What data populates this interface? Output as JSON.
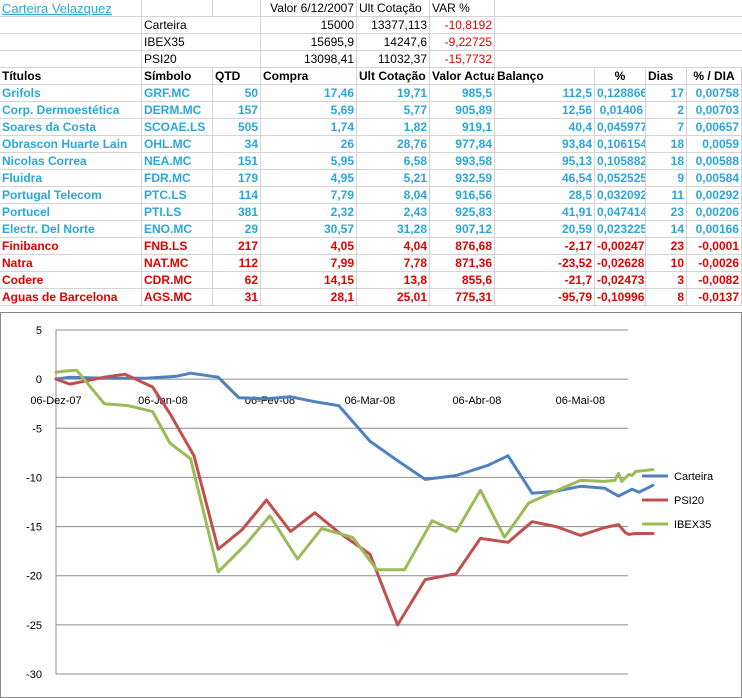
{
  "sheet": {
    "title": "Carteira Velazquez",
    "summary_headers": [
      "Valor 6/12/2007",
      "Ult Cotação",
      "VAR %"
    ],
    "summary": [
      {
        "name": "Carteira",
        "valor": "15000",
        "ult": "13377,113",
        "var": "-10,8192"
      },
      {
        "name": "IBEX35",
        "valor": "15695,9",
        "ult": "14247,6",
        "var": "-9,22725"
      },
      {
        "name": "PSI20",
        "valor": "13098,41",
        "ult": "11032,37",
        "var": "-15,7732"
      }
    ],
    "headers": [
      "Títulos",
      "Símbolo",
      "QTD",
      "Compra",
      "Ult Cotação",
      "Valor Actual",
      "Balanço",
      "%",
      "Dias",
      "% / DIA"
    ],
    "rows": [
      {
        "titulo": "Grifols",
        "simbolo": "GRF.MC",
        "qtd": "50",
        "compra": "17,46",
        "ult": "19,71",
        "valor": "985,5",
        "balanco": "112,5",
        "pct": "0,128866",
        "dias": "17",
        "pctdia": "0,00758",
        "color": "#2aa7d8"
      },
      {
        "titulo": "Corp. Dermoestética",
        "simbolo": "DERM.MC",
        "qtd": "157",
        "compra": "5,69",
        "ult": "5,77",
        "valor": "905,89",
        "balanco": "12,56",
        "pct": "0,01406",
        "dias": "2",
        "pctdia": "0,00703",
        "color": "#2aa7d8"
      },
      {
        "titulo": "Soares da Costa",
        "simbolo": "SCOAE.LS",
        "qtd": "505",
        "compra": "1,74",
        "ult": "1,82",
        "valor": "919,1",
        "balanco": "40,4",
        "pct": "0,045977",
        "dias": "7",
        "pctdia": "0,00657",
        "color": "#2aa7d8"
      },
      {
        "titulo": "Obrascon Huarte Lain",
        "simbolo": "OHL.MC",
        "qtd": "34",
        "compra": "26",
        "ult": "28,76",
        "valor": "977,84",
        "balanco": "93,84",
        "pct": "0,106154",
        "dias": "18",
        "pctdia": "0,0059",
        "color": "#2aa7d8"
      },
      {
        "titulo": "Nicolas Correa",
        "simbolo": "NEA.MC",
        "qtd": "151",
        "compra": "5,95",
        "ult": "6,58",
        "valor": "993,58",
        "balanco": "95,13",
        "pct": "0,105882",
        "dias": "18",
        "pctdia": "0,00588",
        "color": "#2aa7d8"
      },
      {
        "titulo": "Fluidra",
        "simbolo": "FDR.MC",
        "qtd": "179",
        "compra": "4,95",
        "ult": "5,21",
        "valor": "932,59",
        "balanco": "46,54",
        "pct": "0,052525",
        "dias": "9",
        "pctdia": "0,00584",
        "color": "#2aa7d8"
      },
      {
        "titulo": "Portugal Telecom",
        "simbolo": "PTC.LS",
        "qtd": "114",
        "compra": "7,79",
        "ult": "8,04",
        "valor": "916,56",
        "balanco": "28,5",
        "pct": "0,032092",
        "dias": "11",
        "pctdia": "0,00292",
        "color": "#2aa7d8"
      },
      {
        "titulo": "Portucel",
        "simbolo": "PTI.LS",
        "qtd": "381",
        "compra": "2,32",
        "ult": "2,43",
        "valor": "925,83",
        "balanco": "41,91",
        "pct": "0,047414",
        "dias": "23",
        "pctdia": "0,00206",
        "color": "#2aa7d8"
      },
      {
        "titulo": "Electr. Del Norte",
        "simbolo": "ENO.MC",
        "qtd": "29",
        "compra": "30,57",
        "ult": "31,28",
        "valor": "907,12",
        "balanco": "20,59",
        "pct": "0,023225",
        "dias": "14",
        "pctdia": "0,00166",
        "color": "#2aa7d8"
      },
      {
        "titulo": "Finibanco",
        "simbolo": "FNB.LS",
        "qtd": "217",
        "compra": "4,05",
        "ult": "4,04",
        "valor": "876,68",
        "balanco": "-2,17",
        "pct": "-0,00247",
        "dias": "23",
        "pctdia": "-0,0001",
        "color": "#e00000"
      },
      {
        "titulo": "Natra",
        "simbolo": "NAT.MC",
        "qtd": "112",
        "compra": "7,99",
        "ult": "7,78",
        "valor": "871,36",
        "balanco": "-23,52",
        "pct": "-0,02628",
        "dias": "10",
        "pctdia": "-0,0026",
        "color": "#e00000"
      },
      {
        "titulo": "Codere",
        "simbolo": "CDR.MC",
        "qtd": "62",
        "compra": "14,15",
        "ult": "13,8",
        "valor": "855,6",
        "balanco": "-21,7",
        "pct": "-0,02473",
        "dias": "3",
        "pctdia": "-0,0082",
        "color": "#e00000"
      },
      {
        "titulo": "Aguas de Barcelona",
        "simbolo": "AGS.MC",
        "qtd": "31",
        "compra": "28,1",
        "ult": "25,01",
        "valor": "775,31",
        "balanco": "-95,79",
        "pct": "-0,10996",
        "dias": "8",
        "pctdia": "-0,0137",
        "color": "#e00000"
      }
    ]
  },
  "chart_data": {
    "type": "line",
    "x_tick_labels": [
      "06-Dez-07",
      "06-Jan-08",
      "06-Fev-08",
      "06-Mar-08",
      "06-Abr-08",
      "06-Mai-08"
    ],
    "ylim": [
      -30,
      5
    ],
    "yticks": [
      5,
      0,
      -5,
      -10,
      -15,
      -20,
      -25,
      -30
    ],
    "grid": "horizontal",
    "legend": "right",
    "series": [
      {
        "name": "Carteira",
        "color": "#4f81bd",
        "x": [
          "2007-12-06",
          "2007-12-10",
          "2007-12-20",
          "2008-01-01",
          "2008-01-10",
          "2008-01-14",
          "2008-01-22",
          "2008-01-28",
          "2008-02-05",
          "2008-02-12",
          "2008-02-19",
          "2008-02-26",
          "2008-03-06",
          "2008-03-14",
          "2008-03-22",
          "2008-03-31",
          "2008-04-09",
          "2008-04-15",
          "2008-04-22",
          "2008-04-29",
          "2008-05-06",
          "2008-05-13",
          "2008-05-17",
          "2008-05-21",
          "2008-05-23",
          "2008-05-27"
        ],
        "values": [
          0,
          0.2,
          0.1,
          0.1,
          0.3,
          0.6,
          0.2,
          -1.9,
          -2,
          -1.8,
          -2.3,
          -2.7,
          -6.3,
          -8.3,
          -10.2,
          -9.8,
          -8.8,
          -7.8,
          -11.6,
          -11.4,
          -10.9,
          -11.1,
          -11.9,
          -11.2,
          -11.5,
          -10.8
        ]
      },
      {
        "name": "PSI20",
        "color": "#c0504d",
        "x": [
          "2007-12-06",
          "2007-12-10",
          "2007-12-20",
          "2007-12-26",
          "2008-01-03",
          "2008-01-08",
          "2008-01-15",
          "2008-01-22",
          "2008-01-29",
          "2008-02-05",
          "2008-02-12",
          "2008-02-19",
          "2008-02-26",
          "2008-03-06",
          "2008-03-14",
          "2008-03-22",
          "2008-03-31",
          "2008-04-07",
          "2008-04-15",
          "2008-04-22",
          "2008-04-29",
          "2008-05-06",
          "2008-05-13",
          "2008-05-17",
          "2008-05-19",
          "2008-05-20",
          "2008-05-22",
          "2008-05-27"
        ],
        "values": [
          0,
          -0.5,
          0.2,
          0.5,
          -0.8,
          -3.5,
          -7.8,
          -17.3,
          -15.3,
          -12.3,
          -15.5,
          -13.6,
          -15.6,
          -17.8,
          -25,
          -20.4,
          -19.8,
          -16.2,
          -16.6,
          -14.5,
          -15,
          -15.9,
          -15.1,
          -14.8,
          -15.6,
          -15.8,
          -15.7,
          -15.7
        ]
      },
      {
        "name": "IBEX35",
        "color": "#9bbb59",
        "x": [
          "2007-12-06",
          "2007-12-08",
          "2007-12-12",
          "2007-12-20",
          "2007-12-27",
          "2008-01-03",
          "2008-01-08",
          "2008-01-14",
          "2008-01-22",
          "2008-01-30",
          "2008-02-06",
          "2008-02-14",
          "2008-02-21",
          "2008-03-01",
          "2008-03-08",
          "2008-03-16",
          "2008-03-24",
          "2008-03-31",
          "2008-04-07",
          "2008-04-14",
          "2008-04-21",
          "2008-04-28",
          "2008-05-06",
          "2008-05-13",
          "2008-05-16",
          "2008-05-17",
          "2008-05-18",
          "2008-05-20",
          "2008-05-21",
          "2008-05-22",
          "2008-05-27"
        ],
        "values": [
          0.7,
          0.8,
          0.9,
          -2.5,
          -2.7,
          -3.3,
          -6.5,
          -8.1,
          -19.6,
          -16.8,
          -13.9,
          -18.3,
          -15.2,
          -16.1,
          -19.4,
          -19.4,
          -14.4,
          -15.5,
          -11.3,
          -16.1,
          -12.6,
          -11.5,
          -10.3,
          -10.4,
          -10.3,
          -9.6,
          -10.4,
          -9.7,
          -9.8,
          -9.4,
          -9.2
        ]
      }
    ]
  }
}
